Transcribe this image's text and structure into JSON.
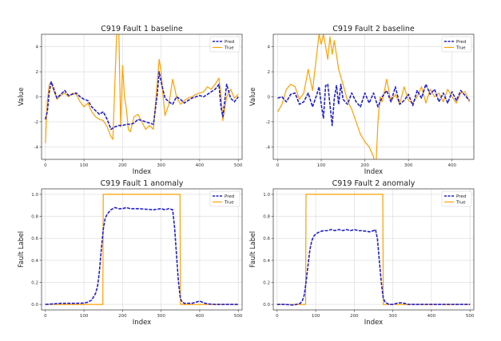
{
  "chart_data": [
    {
      "type": "line",
      "title": "C919 Fault 1 baseline",
      "xlabel": "Index",
      "ylabel": "Value",
      "xlim": [
        -10,
        510
      ],
      "ylim": [
        -5,
        5
      ],
      "xticks": [
        0,
        100,
        200,
        300,
        400,
        500
      ],
      "yticks": [
        -4,
        -2,
        0,
        2,
        4
      ],
      "grid": true,
      "legend": "top-right",
      "series": [
        {
          "name": "Pred",
          "color": "#1f1fd1",
          "dash": true,
          "x": [
            0,
            5,
            10,
            15,
            20,
            30,
            40,
            50,
            60,
            70,
            80,
            90,
            100,
            110,
            120,
            130,
            140,
            150,
            160,
            170,
            180,
            190,
            200,
            210,
            220,
            230,
            240,
            250,
            260,
            270,
            280,
            290,
            295,
            300,
            310,
            320,
            330,
            340,
            350,
            360,
            370,
            380,
            390,
            400,
            410,
            420,
            430,
            440,
            450,
            455,
            460,
            470,
            480,
            490,
            500
          ],
          "y": [
            -1.8,
            -1.2,
            0.4,
            1.2,
            0.8,
            -0.1,
            0.2,
            0.5,
            0.1,
            0.2,
            0.3,
            0.0,
            -0.2,
            -0.3,
            -0.8,
            -1.1,
            -1.4,
            -1.2,
            -1.8,
            -2.6,
            -2.4,
            -2.3,
            -2.3,
            -2.2,
            -2.2,
            -2.1,
            -1.8,
            -1.9,
            -2.0,
            -2.1,
            -2.2,
            0.2,
            2.0,
            1.2,
            -0.1,
            -0.4,
            -0.6,
            0.0,
            -0.2,
            -0.5,
            -0.3,
            -0.1,
            0.0,
            0.1,
            0.0,
            0.2,
            0.4,
            0.6,
            1.0,
            -0.8,
            -1.6,
            1.0,
            -0.1,
            -0.4,
            0.0
          ]
        },
        {
          "name": "True",
          "color": "#ff9f00",
          "dash": false,
          "x": [
            0,
            5,
            10,
            15,
            20,
            30,
            40,
            50,
            60,
            70,
            80,
            90,
            100,
            110,
            120,
            130,
            140,
            150,
            160,
            170,
            175,
            180,
            185,
            190,
            195,
            200,
            205,
            210,
            215,
            220,
            230,
            240,
            250,
            260,
            270,
            280,
            290,
            295,
            300,
            305,
            310,
            320,
            330,
            340,
            350,
            360,
            370,
            380,
            390,
            400,
            410,
            420,
            430,
            440,
            450,
            455,
            460,
            470,
            480,
            490,
            500
          ],
          "y": [
            -3.7,
            -0.3,
            1.0,
            1.2,
            0.6,
            -0.2,
            0.1,
            0.3,
            0.0,
            0.3,
            0.2,
            -0.4,
            -0.8,
            -0.5,
            -1.2,
            -1.6,
            -1.8,
            -1.9,
            -2.4,
            -3.2,
            -3.4,
            1.0,
            5.2,
            6.0,
            -2.4,
            2.5,
            0.0,
            -1.0,
            -2.6,
            -2.8,
            -1.6,
            -1.4,
            -2.0,
            -2.6,
            -2.3,
            -2.6,
            1.2,
            3.0,
            2.0,
            0.1,
            -1.5,
            -0.6,
            1.4,
            0.0,
            -0.6,
            -0.3,
            -0.1,
            0.0,
            0.2,
            0.3,
            0.4,
            0.8,
            0.6,
            1.0,
            1.5,
            0.2,
            -1.9,
            0.0,
            0.6,
            -0.1,
            0.2
          ]
        }
      ]
    },
    {
      "type": "line",
      "title": "C919 Fault 2 baseline",
      "xlabel": "Index",
      "ylabel": "Value",
      "xlim": [
        -10,
        450
      ],
      "ylim": [
        -5,
        5
      ],
      "xticks": [
        0,
        100,
        200,
        300,
        400
      ],
      "yticks": [
        -4,
        -2,
        0,
        2,
        4
      ],
      "grid": true,
      "legend": "top-right",
      "series": [
        {
          "name": "Pred",
          "color": "#1f1fd1",
          "dash": true,
          "x": [
            0,
            10,
            20,
            30,
            40,
            50,
            60,
            70,
            80,
            90,
            95,
            100,
            105,
            110,
            115,
            120,
            125,
            130,
            135,
            140,
            145,
            150,
            160,
            170,
            180,
            190,
            200,
            210,
            220,
            230,
            240,
            250,
            260,
            270,
            280,
            290,
            300,
            310,
            320,
            330,
            340,
            350,
            360,
            370,
            380,
            390,
            400,
            410,
            420,
            430,
            440
          ],
          "y": [
            -0.1,
            0.0,
            -0.4,
            0.2,
            0.3,
            -0.6,
            -0.4,
            0.3,
            -0.8,
            0.2,
            0.8,
            -0.6,
            -1.7,
            0.9,
            1.0,
            -0.6,
            -2.3,
            -0.1,
            0.9,
            -0.6,
            1.0,
            -0.2,
            -0.6,
            0.3,
            -0.4,
            -0.8,
            0.3,
            -0.5,
            0.3,
            -0.8,
            0.0,
            0.5,
            -0.4,
            0.8,
            -0.6,
            -0.3,
            0.2,
            -0.7,
            0.5,
            -0.1,
            1.0,
            0.2,
            0.6,
            -0.4,
            0.3,
            -0.5,
            0.4,
            -0.3,
            0.5,
            0.1,
            -0.3
          ]
        },
        {
          "name": "True",
          "color": "#ff9f00",
          "dash": false,
          "x": [
            0,
            10,
            20,
            30,
            40,
            50,
            60,
            70,
            80,
            90,
            95,
            100,
            105,
            110,
            115,
            120,
            125,
            130,
            140,
            150,
            160,
            170,
            180,
            190,
            200,
            210,
            220,
            225,
            230,
            235,
            240,
            250,
            260,
            270,
            280,
            290,
            300,
            310,
            320,
            330,
            340,
            350,
            360,
            370,
            380,
            390,
            400,
            410,
            420,
            430,
            440
          ],
          "y": [
            -1.2,
            -0.6,
            0.6,
            1.0,
            0.8,
            -0.2,
            0.3,
            2.2,
            0.5,
            3.5,
            5.0,
            4.2,
            5.0,
            4.0,
            3.0,
            4.8,
            3.4,
            4.5,
            2.2,
            1.0,
            -0.3,
            -1.0,
            -2.0,
            -3.0,
            -3.6,
            -4.0,
            -4.8,
            -6.0,
            -2.0,
            0.0,
            -0.4,
            1.4,
            -0.4,
            0.2,
            -0.6,
            0.8,
            -0.3,
            -0.5,
            0.0,
            0.8,
            -0.5,
            0.6,
            0.0,
            0.3,
            -0.4,
            0.6,
            0.0,
            -0.5,
            0.3,
            0.4,
            -0.4
          ]
        }
      ]
    },
    {
      "type": "line",
      "title": "C919 Fault 1 anomaly",
      "xlabel": "Index",
      "ylabel": "Fault Label",
      "xlim": [
        -10,
        510
      ],
      "ylim": [
        -0.05,
        1.05
      ],
      "xticks": [
        0,
        100,
        200,
        300,
        400,
        500
      ],
      "yticks": [
        0.0,
        0.2,
        0.4,
        0.6,
        0.8,
        1.0
      ],
      "grid": true,
      "legend": "top-right",
      "series": [
        {
          "name": "Pred",
          "color": "#1f1fd1",
          "dash": true,
          "x": [
            0,
            20,
            40,
            60,
            80,
            100,
            110,
            120,
            130,
            135,
            140,
            145,
            150,
            155,
            160,
            165,
            170,
            175,
            180,
            190,
            200,
            210,
            220,
            240,
            260,
            280,
            300,
            310,
            320,
            330,
            335,
            340,
            345,
            350,
            355,
            360,
            370,
            380,
            390,
            400,
            410,
            420,
            440,
            460,
            480,
            500
          ],
          "y": [
            0.0,
            0.005,
            0.01,
            0.01,
            0.01,
            0.012,
            0.02,
            0.04,
            0.1,
            0.16,
            0.3,
            0.5,
            0.68,
            0.78,
            0.82,
            0.84,
            0.86,
            0.87,
            0.88,
            0.87,
            0.87,
            0.88,
            0.87,
            0.87,
            0.865,
            0.86,
            0.87,
            0.86,
            0.87,
            0.86,
            0.7,
            0.45,
            0.2,
            0.05,
            0.02,
            0.01,
            0.01,
            0.01,
            0.02,
            0.03,
            0.015,
            0.005,
            0.0,
            0.0,
            0.0,
            0.0
          ]
        },
        {
          "name": "True",
          "color": "#ff9f00",
          "dash": false,
          "x": [
            0,
            149,
            150,
            349,
            350,
            500
          ],
          "y": [
            0,
            0,
            1,
            1,
            0,
            0
          ]
        }
      ]
    },
    {
      "type": "line",
      "title": "C919 Fault 2 anomaly",
      "xlabel": "Index",
      "ylabel": "Fault Label",
      "xlim": [
        -10,
        510
      ],
      "ylim": [
        -0.05,
        1.05
      ],
      "xticks": [
        0,
        100,
        200,
        300,
        400,
        500
      ],
      "yticks": [
        0.0,
        0.2,
        0.4,
        0.6,
        0.8,
        1.0
      ],
      "grid": true,
      "legend": "top-right",
      "series": [
        {
          "name": "Pred",
          "color": "#1f1fd1",
          "dash": true,
          "x": [
            0,
            20,
            40,
            50,
            60,
            65,
            70,
            75,
            80,
            85,
            90,
            95,
            100,
            110,
            120,
            130,
            140,
            150,
            160,
            170,
            180,
            190,
            200,
            210,
            220,
            240,
            250,
            255,
            260,
            265,
            270,
            275,
            280,
            290,
            300,
            310,
            320,
            330,
            340,
            360,
            380,
            400,
            420,
            440,
            460,
            480,
            500
          ],
          "y": [
            0.0,
            0.0,
            -0.005,
            0.0,
            0.01,
            0.03,
            0.08,
            0.2,
            0.35,
            0.5,
            0.58,
            0.62,
            0.64,
            0.66,
            0.67,
            0.67,
            0.68,
            0.67,
            0.68,
            0.67,
            0.68,
            0.67,
            0.68,
            0.67,
            0.67,
            0.66,
            0.67,
            0.68,
            0.6,
            0.4,
            0.2,
            0.06,
            0.02,
            0.0,
            0.0,
            0.01,
            0.015,
            0.01,
            0.0,
            0.0,
            0.0,
            0.0,
            0.0,
            0.0,
            0.0,
            0.0,
            0.0
          ]
        },
        {
          "name": "True",
          "color": "#ff9f00",
          "dash": false,
          "x": [
            0,
            74,
            75,
            274,
            275,
            500
          ],
          "y": [
            0,
            0,
            1,
            1,
            0,
            0
          ]
        }
      ]
    }
  ]
}
